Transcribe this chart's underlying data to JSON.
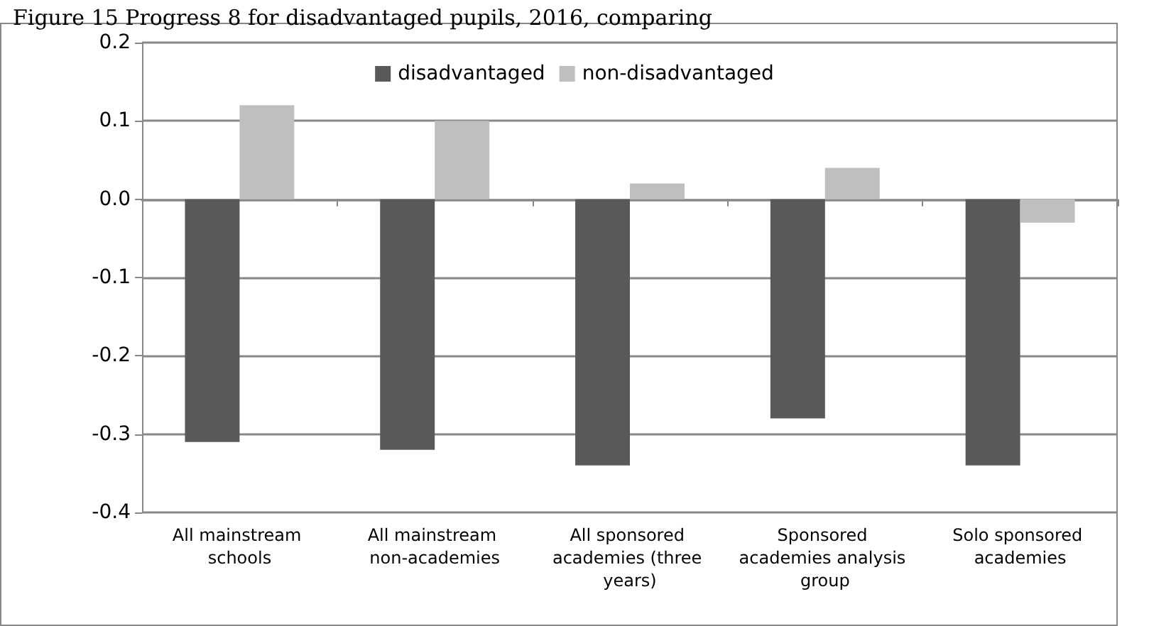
{
  "chart_data": {
    "type": "bar",
    "title": "Figure 15 Progress 8 for disadvantaged pupils, 2016, comparing",
    "categories": [
      "All mainstream schools",
      "All mainstream non-academies",
      "All sponsored academies (three years)",
      "Sponsored academies analysis group",
      "Solo sponsored academies"
    ],
    "series": [
      {
        "name": "disadvantaged",
        "color": "#595959",
        "values": [
          -0.31,
          -0.32,
          -0.34,
          -0.28,
          -0.34
        ]
      },
      {
        "name": "non-disadvantaged",
        "color": "#bfbfbf",
        "values": [
          0.12,
          0.1,
          0.02,
          0.04,
          -0.03
        ]
      }
    ],
    "ylim": [
      -0.4,
      0.2
    ],
    "yticks": [
      {
        "value": -0.4,
        "label": "-0.4"
      },
      {
        "value": -0.3,
        "label": "-0.3"
      },
      {
        "value": -0.2,
        "label": "-0.2"
      },
      {
        "value": -0.1,
        "label": "-0.1"
      },
      {
        "value": 0,
        "label": "0.0"
      },
      {
        "value": 0.1,
        "label": "0.1"
      },
      {
        "value": 0.2,
        "label": "0.2"
      }
    ],
    "grid": "y",
    "legend": "top"
  }
}
